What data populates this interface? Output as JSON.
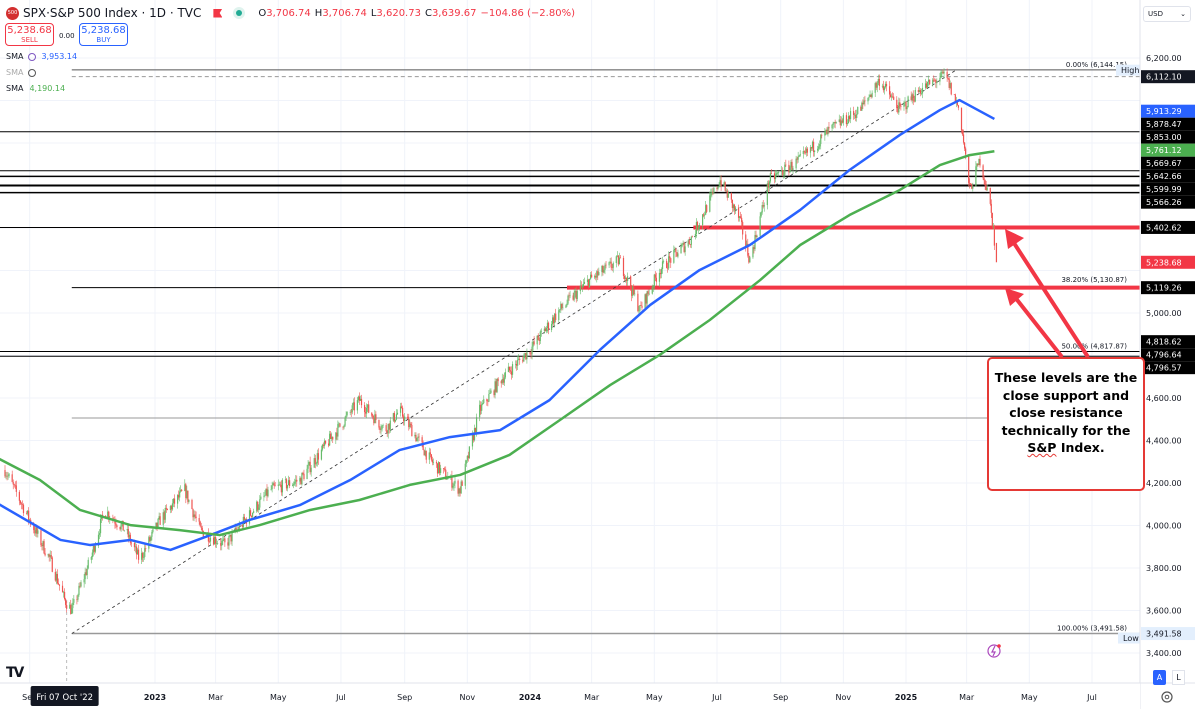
{
  "header": {
    "logo_text": "500",
    "symbol": "SPX",
    "title": "S&P 500 Index · 1D · TVC",
    "symbol_sep": " · ",
    "ohlc": [
      {
        "k": "O",
        "v": "3,706.74"
      },
      {
        "k": "H",
        "v": "3,706.74"
      },
      {
        "k": "L",
        "v": "3,620.73"
      },
      {
        "k": "C",
        "v": "3,639.67"
      }
    ],
    "change": "−104.86 (−2.80%)"
  },
  "trade": {
    "sell_price": "5,238.68",
    "sell_label": "SELL",
    "spread": "0.00",
    "buy_price": "5,238.68",
    "buy_label": "BUY"
  },
  "indicators": [
    {
      "name": "SMA",
      "value": "3,953.14",
      "color": "#2962ff"
    },
    {
      "name": "SMA",
      "value": "",
      "color": "#999999",
      "hidden": true
    },
    {
      "name": "SMA",
      "value": "4,190.14",
      "color": "#4caf50"
    }
  ],
  "currency": "USD",
  "colors": {
    "up": "#66bb6a",
    "down": "#ef5350",
    "sma_fast": "#2962ff",
    "sma_slow": "#4caf50",
    "annotation": "#f23645",
    "level": "#000000"
  },
  "chart_data": {
    "type": "candlestick",
    "title": "SPX · S&P 500 Index · 1D · TVC",
    "y_range": [
      3400,
      6200
    ],
    "y_scale": "linear",
    "grid": true,
    "price_ticks": [
      6200,
      6000,
      5800,
      5600,
      5400,
      5200,
      5000,
      4800,
      4600,
      4400,
      4200,
      4000,
      3800,
      3600,
      3400
    ],
    "price_tick_labels": [
      {
        "value": 6200,
        "text": "6,200.00"
      },
      {
        "value": 5000,
        "text": "5,000.00"
      },
      {
        "value": 4600,
        "text": "4,600.00"
      },
      {
        "value": 4400,
        "text": "4,400.00"
      },
      {
        "value": 4200,
        "text": "4,200.00"
      },
      {
        "value": 4000,
        "text": "4,000.00"
      },
      {
        "value": 3800,
        "text": "3,800.00"
      },
      {
        "value": 3600,
        "text": "3,600.00"
      },
      {
        "value": 3400,
        "text": "3,400.00"
      }
    ],
    "time_labels": [
      {
        "date": "2022-09-01",
        "text": "Sep",
        "bold": false
      },
      {
        "date": "2023-01-01",
        "text": "2023",
        "bold": true
      },
      {
        "date": "2023-03-01",
        "text": "Mar",
        "bold": false
      },
      {
        "date": "2023-05-01",
        "text": "May",
        "bold": false
      },
      {
        "date": "2023-07-01",
        "text": "Jul",
        "bold": false
      },
      {
        "date": "2023-09-01",
        "text": "Sep",
        "bold": false
      },
      {
        "date": "2023-11-01",
        "text": "Nov",
        "bold": false
      },
      {
        "date": "2024-01-01",
        "text": "2024",
        "bold": true
      },
      {
        "date": "2024-03-01",
        "text": "Mar",
        "bold": false
      },
      {
        "date": "2024-05-01",
        "text": "May",
        "bold": false
      },
      {
        "date": "2024-07-01",
        "text": "Jul",
        "bold": false
      },
      {
        "date": "2024-09-01",
        "text": "Sep",
        "bold": false
      },
      {
        "date": "2024-11-01",
        "text": "Nov",
        "bold": false
      },
      {
        "date": "2025-01-01",
        "text": "2025",
        "bold": true
      },
      {
        "date": "2025-03-01",
        "text": "Mar",
        "bold": false
      },
      {
        "date": "2025-05-01",
        "text": "May",
        "bold": false
      },
      {
        "date": "2025-07-01",
        "text": "Jul",
        "bold": false
      }
    ],
    "crosshair": {
      "date": "2022-10-07",
      "text": "Fri 07 Oct '22"
    },
    "price_path": [
      [
        "2022-08-08",
        4261
      ],
      [
        "2022-09-01",
        4026
      ],
      [
        "2022-09-21",
        3838
      ],
      [
        "2022-10-05",
        3650
      ],
      [
        "2022-10-12",
        3600
      ],
      [
        "2022-10-30",
        3838
      ],
      [
        "2022-11-13",
        4073
      ],
      [
        "2022-12-03",
        3978
      ],
      [
        "2022-12-17",
        3838
      ],
      [
        "2023-01-06",
        4026
      ],
      [
        "2023-01-30",
        4167
      ],
      [
        "2023-02-14",
        3978
      ],
      [
        "2023-03-10",
        3908
      ],
      [
        "2023-03-30",
        4026
      ],
      [
        "2023-04-23",
        4167
      ],
      [
        "2023-05-22",
        4214
      ],
      [
        "2023-06-20",
        4402
      ],
      [
        "2023-07-19",
        4590
      ],
      [
        "2023-08-13",
        4449
      ],
      [
        "2023-08-27",
        4543
      ],
      [
        "2023-09-26",
        4308
      ],
      [
        "2023-10-25",
        4167
      ],
      [
        "2023-11-13",
        4543
      ],
      [
        "2023-12-03",
        4685
      ],
      [
        "2024-01-01",
        4826
      ],
      [
        "2024-01-30",
        5014
      ],
      [
        "2024-02-28",
        5155
      ],
      [
        "2024-03-28",
        5249
      ],
      [
        "2024-04-17",
        5014
      ],
      [
        "2024-05-06",
        5202
      ],
      [
        "2024-06-05",
        5344
      ],
      [
        "2024-07-04",
        5626
      ],
      [
        "2024-07-23",
        5438
      ],
      [
        "2024-08-02",
        5249
      ],
      [
        "2024-08-21",
        5626
      ],
      [
        "2024-09-20",
        5720
      ],
      [
        "2024-10-19",
        5861
      ],
      [
        "2024-11-17",
        5955
      ],
      [
        "2024-12-06",
        6096
      ],
      [
        "2024-12-26",
        5955
      ],
      [
        "2025-01-14",
        6049
      ],
      [
        "2025-02-08",
        6120
      ],
      [
        "2025-02-22",
        5955
      ],
      [
        "2025-03-04",
        5579
      ],
      [
        "2025-03-14",
        5720
      ],
      [
        "2025-03-23",
        5532
      ],
      [
        "2025-03-27",
        5400
      ],
      [
        "2025-03-29",
        5238.68
      ]
    ],
    "series": [
      {
        "kind": "sma",
        "color": "#2962ff",
        "points": [
          [
            "2022-07-26",
            4120
          ],
          [
            "2022-10-01",
            3932
          ],
          [
            "2022-10-30",
            3908
          ],
          [
            "2022-12-08",
            3932
          ],
          [
            "2023-01-16",
            3885
          ],
          [
            "2023-02-24",
            3955
          ],
          [
            "2023-04-03",
            4026
          ],
          [
            "2023-05-22",
            4096
          ],
          [
            "2023-07-10",
            4214
          ],
          [
            "2023-08-27",
            4355
          ],
          [
            "2023-10-15",
            4416
          ],
          [
            "2023-12-03",
            4449
          ],
          [
            "2024-01-20",
            4590
          ],
          [
            "2024-03-09",
            4826
          ],
          [
            "2024-04-27",
            5038
          ],
          [
            "2024-06-14",
            5202
          ],
          [
            "2024-08-02",
            5320
          ],
          [
            "2024-09-20",
            5485
          ],
          [
            "2024-11-07",
            5673
          ],
          [
            "2024-12-26",
            5838
          ],
          [
            "2025-02-03",
            5955
          ],
          [
            "2025-02-22",
            6002
          ],
          [
            "2025-03-28",
            5913.29
          ]
        ]
      },
      {
        "kind": "sma",
        "color": "#4caf50",
        "points": [
          [
            "2022-07-26",
            4332
          ],
          [
            "2022-09-11",
            4214
          ],
          [
            "2022-10-20",
            4073
          ],
          [
            "2022-12-08",
            4002
          ],
          [
            "2023-01-25",
            3978
          ],
          [
            "2023-03-05",
            3955
          ],
          [
            "2023-04-13",
            4002
          ],
          [
            "2023-06-01",
            4073
          ],
          [
            "2023-07-19",
            4120
          ],
          [
            "2023-09-06",
            4191
          ],
          [
            "2023-10-25",
            4238
          ],
          [
            "2023-12-12",
            4332
          ],
          [
            "2024-01-30",
            4496
          ],
          [
            "2024-03-19",
            4661
          ],
          [
            "2024-05-06",
            4802
          ],
          [
            "2024-06-24",
            4967
          ],
          [
            "2024-08-12",
            5155
          ],
          [
            "2024-09-20",
            5320
          ],
          [
            "2024-11-07",
            5461
          ],
          [
            "2024-12-26",
            5579
          ],
          [
            "2025-02-03",
            5696
          ],
          [
            "2025-03-04",
            5743
          ],
          [
            "2025-03-28",
            5761.12
          ]
        ]
      }
    ],
    "levels": [
      {
        "price": 5853.0,
        "from": "2022-07-26",
        "color": "#000000",
        "width": 1
      },
      {
        "price": 5669.67,
        "from": "2022-07-26",
        "color": "#000000",
        "width": 1
      },
      {
        "price": 5642.66,
        "from": "2022-07-26",
        "color": "#000000",
        "width": 1.5
      },
      {
        "price": 5599.99,
        "from": "2022-07-26",
        "color": "#000000",
        "width": 2
      },
      {
        "price": 5566.26,
        "from": "2022-07-26",
        "color": "#000000",
        "width": 1.5
      },
      {
        "price": 5402.62,
        "from": "2022-07-26",
        "color": "#000000",
        "width": 1
      },
      {
        "price": 5119.26,
        "from": "2022-10-12",
        "color": "#000000",
        "width": 1
      },
      {
        "price": 4818.62,
        "from": "2022-07-26",
        "color": "#000000",
        "width": 1
      },
      {
        "price": 4796.64,
        "from": "2022-07-26",
        "color": "#000000",
        "width": 1
      },
      {
        "price": 4506.0,
        "from": "2022-10-12",
        "color": "#999999",
        "width": 1
      },
      {
        "price": 5402.62,
        "from": "2024-06-08",
        "color": "#f23645",
        "width": 4
      },
      {
        "price": 5119.26,
        "from": "2024-02-06",
        "color": "#f23645",
        "width": 4
      }
    ],
    "fib": [
      {
        "level": "0.00%",
        "price": 6144.15,
        "text": "0.00% (6,144.15)"
      },
      {
        "level": "38.20%",
        "price": 5130.87,
        "text": "38.20% (5,130.87)"
      },
      {
        "level": "50.00%",
        "price": 4817.87,
        "text": "50.00% (4,817.87)"
      },
      {
        "level": "100.00%",
        "price": 3491.58,
        "text": "100.00% (3,491.58)"
      }
    ],
    "trendline": {
      "from": [
        "2022-10-12",
        3491.58
      ],
      "to": [
        "2025-02-19",
        6144.15
      ]
    },
    "high_line": {
      "price": 6112.1,
      "label": "High"
    },
    "low_line": {
      "price": 3491.58,
      "label": "Low"
    },
    "axis_labels": [
      {
        "price": 6112.1,
        "text": "6,112.10",
        "bg": "#131722",
        "fg": "#ffffff"
      },
      {
        "price": 5913.29,
        "text": "5,913.29",
        "bg": "#2962ff",
        "fg": "#ffffff"
      },
      {
        "price": 5878.47,
        "text": "5,878.47",
        "bg": "#000000",
        "fg": "#ffffff"
      },
      {
        "price": 5853.0,
        "text": "5,853.00",
        "bg": "#000000",
        "fg": "#ffffff"
      },
      {
        "price": 5761.12,
        "text": "5,761.12",
        "bg": "#4caf50",
        "fg": "#ffffff"
      },
      {
        "price": 5669.67,
        "text": "5,669.67",
        "bg": "#000000",
        "fg": "#ffffff"
      },
      {
        "price": 5642.66,
        "text": "5,642.66",
        "bg": "#000000",
        "fg": "#ffffff"
      },
      {
        "price": 5599.99,
        "text": "5,599.99",
        "bg": "#000000",
        "fg": "#ffffff"
      },
      {
        "price": 5566.26,
        "text": "5,566.26",
        "bg": "#000000",
        "fg": "#ffffff"
      },
      {
        "price": 5402.62,
        "text": "5,402.62",
        "bg": "#000000",
        "fg": "#ffffff"
      },
      {
        "price": 5238.68,
        "text": "5,238.68",
        "bg": "#f23645",
        "fg": "#ffffff"
      },
      {
        "price": 5119.26,
        "text": "5,119.26",
        "bg": "#000000",
        "fg": "#ffffff"
      },
      {
        "price": 4818.62,
        "text": "4,818.62",
        "bg": "#000000",
        "fg": "#ffffff"
      },
      {
        "price": 4796.64,
        "text": "4,796.64",
        "bg": "#000000",
        "fg": "#ffffff"
      },
      {
        "price": 4796.57,
        "text": "4,796.57",
        "bg": "#000000",
        "fg": "#ffffff"
      },
      {
        "price": 3491.58,
        "text": "3,491.58",
        "bg": "#e3effd",
        "fg": "#131722"
      }
    ]
  },
  "annotation": {
    "lines": [
      "These levels are the",
      "close support and",
      "close resistance",
      "technically for the"
    ],
    "last_prefix": "S&P",
    "last_suffix": " Index."
  },
  "scale_buttons": {
    "auto": "A",
    "log": "L"
  }
}
